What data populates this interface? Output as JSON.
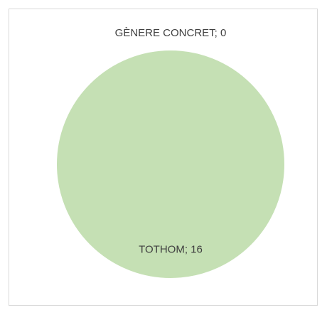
{
  "chart_data": {
    "type": "pie",
    "values": [
      0,
      16
    ],
    "value_labels": [
      "GÈNERE CONCRET; 0",
      "TOTHOM; 16"
    ],
    "color": "#c5e0b4"
  }
}
